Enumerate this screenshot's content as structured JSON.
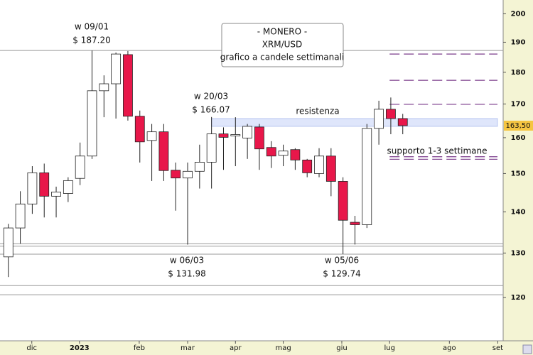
{
  "chart_data": {
    "type": "candlestick",
    "title": [
      "- MONERO -",
      "XRM/USD",
      "grafico a candele settimanali"
    ],
    "categories": [
      null,
      null,
      null,
      null,
      null,
      null,
      null,
      null,
      null,
      null,
      null,
      null,
      null,
      null,
      null,
      null,
      null,
      null,
      null,
      null,
      null,
      null,
      null,
      null,
      null,
      null,
      null,
      null,
      null,
      null,
      null,
      null,
      null,
      null
    ],
    "open": [
      129.1,
      136.0,
      142.0,
      150.2,
      144.0,
      144.7,
      148.7,
      154.8,
      174.1,
      176.3,
      185.8,
      166.3,
      159.2,
      161.7,
      150.9,
      148.8,
      150.6,
      153.1,
      161.1,
      160.5,
      159.9,
      163.1,
      157.2,
      155.0,
      156.6,
      153.7,
      150.0,
      154.8,
      147.9,
      137.4,
      136.8,
      162.7,
      168.4,
      165.6
    ],
    "high": [
      137.0,
      145.3,
      152.0,
      152.7,
      146.5,
      149.0,
      158.6,
      187.2,
      179.0,
      186.5,
      187.0,
      168.0,
      164.0,
      164.0,
      153.0,
      153.0,
      158.0,
      166.07,
      163.0,
      166.0,
      164.0,
      164.0,
      159.0,
      158.0,
      157.0,
      154.0,
      157.0,
      157.0,
      149.0,
      139.0,
      164.0,
      171.0,
      172.0,
      167.0
    ],
    "low": [
      124.5,
      132.2,
      139.5,
      138.6,
      138.6,
      142.5,
      146.9,
      154.0,
      166.0,
      165.6,
      165.0,
      153.0,
      148.0,
      148.0,
      140.3,
      131.98,
      146.0,
      146.0,
      151.0,
      152.0,
      154.0,
      151.0,
      151.5,
      152.0,
      151.0,
      149.0,
      149.0,
      144.0,
      129.74,
      132.0,
      136.0,
      158.0,
      161.0,
      161.0
    ],
    "close": [
      136.0,
      142.0,
      150.2,
      144.0,
      145.1,
      148.1,
      154.8,
      174.1,
      176.3,
      186.0,
      166.3,
      158.8,
      161.7,
      150.8,
      148.8,
      150.6,
      153.1,
      161.1,
      160.1,
      160.9,
      163.3,
      156.8,
      154.8,
      156.2,
      153.7,
      150.2,
      154.8,
      147.9,
      137.9,
      136.8,
      162.7,
      168.4,
      165.6,
      163.5
    ],
    "up_color": "#ffffff",
    "down_color": "#e8174a",
    "log_scale": true,
    "ylim": [
      111,
      205
    ],
    "yticks": [
      120,
      130,
      140,
      150,
      160,
      170,
      180,
      190,
      200
    ],
    "xlim": [
      -0.7,
      41.4
    ],
    "xticks": [
      {
        "value": 1.96,
        "label": "dic"
      },
      {
        "value": 5.95,
        "label": "2023"
      },
      {
        "value": 10.95,
        "label": "feb"
      },
      {
        "value": 15.0,
        "label": "mar"
      },
      {
        "value": 19.0,
        "label": "apr"
      },
      {
        "value": 23.0,
        "label": "mag"
      },
      {
        "value": 27.9,
        "label": "giu"
      },
      {
        "value": 31.9,
        "label": "lug"
      },
      {
        "value": 36.9,
        "label": "ago"
      },
      {
        "value": 40.95,
        "label": "set"
      }
    ],
    "last_price": {
      "value": 163.5,
      "label": "163,50"
    },
    "levels": [
      187.2,
      132.2,
      131.6,
      129.74,
      122.6,
      120.6
    ],
    "dashed_levels": [
      186.0,
      177.4,
      169.9,
      154.6,
      153.9
    ],
    "resistance_band": [
      163.3,
      165.6
    ],
    "resistance_label": "resistenza",
    "support_label": "supporto 1-3 settimane",
    "annotations": [
      {
        "text": "w 09/01",
        "label": "$ 187.20"
      },
      {
        "text": "w 20/03",
        "label": "$ 166.07"
      },
      {
        "text": "w 06/03",
        "label": "$ 131.98"
      },
      {
        "text": "w 05/06",
        "label": "$ 129.74"
      }
    ]
  }
}
